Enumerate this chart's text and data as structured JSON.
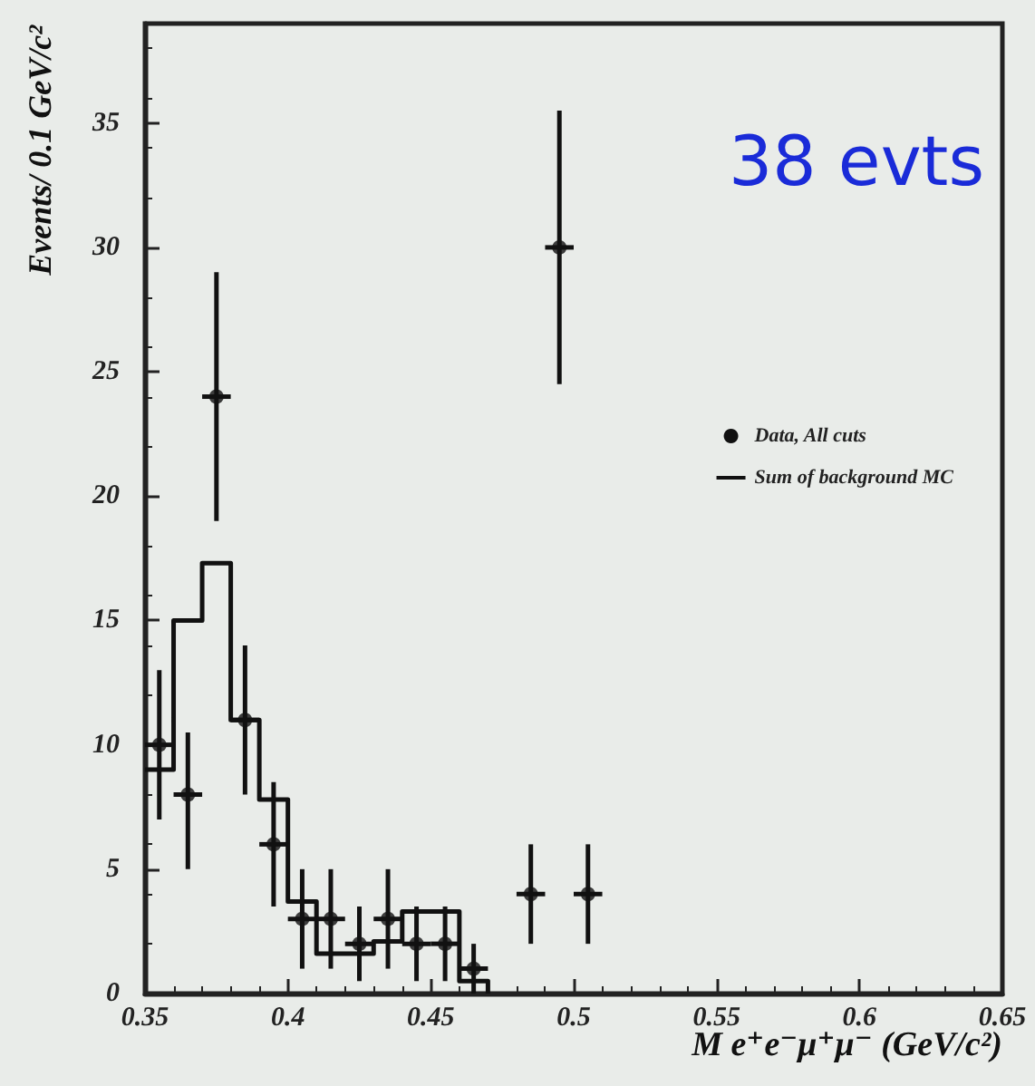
{
  "chart_data": {
    "type": "scatter",
    "xlabel": "M e⁺e⁻μ⁺μ⁻ (GeV/c²)",
    "ylabel": "Events/ 0.1 GeV/c²",
    "annotations": [
      "38 evts"
    ],
    "xlim": [
      0.35,
      0.65
    ],
    "xticks": [
      0.35,
      0.4,
      0.45,
      0.5,
      0.55,
      0.6,
      0.65
    ],
    "ylim": [
      0,
      39
    ],
    "yticks": [
      0,
      5,
      10,
      15,
      20,
      25,
      30,
      35
    ],
    "grid": false,
    "legend": "right",
    "series": [
      {
        "name": "Data, All cuts",
        "marker": "circle",
        "color": "#111111",
        "x": [
          0.355,
          0.365,
          0.375,
          0.385,
          0.395,
          0.405,
          0.415,
          0.425,
          0.435,
          0.445,
          0.455,
          0.465,
          0.485,
          0.495,
          0.505
        ],
        "values": [
          10,
          8,
          24,
          11,
          6,
          3,
          3,
          2,
          3,
          2,
          2,
          1,
          4,
          30,
          4
        ],
        "errors": [
          [
            7,
            13
          ],
          [
            5,
            10.5
          ],
          [
            19,
            29
          ],
          [
            8,
            14
          ],
          [
            3.5,
            8.5
          ],
          [
            1,
            5
          ],
          [
            1,
            5
          ],
          [
            0.5,
            3.5
          ],
          [
            1,
            5
          ],
          [
            0.5,
            3.5
          ],
          [
            0.5,
            3.5
          ],
          [
            0,
            2
          ],
          [
            2,
            6
          ],
          [
            24.5,
            35.5
          ],
          [
            2,
            6
          ]
        ],
        "xerrors": [
          0.005,
          0.005,
          0.005,
          0.005,
          0.005,
          0.005,
          0.005,
          0.005,
          0.005,
          0.005,
          0.005,
          0.005,
          0.005,
          0.005,
          0.005
        ]
      },
      {
        "name": "Sum of background MC",
        "type": "step",
        "marker": "none",
        "color": "#111111",
        "line_style": "solid",
        "x": [
          0.35,
          0.36,
          0.37,
          0.38,
          0.39,
          0.4,
          0.41,
          0.42,
          0.43,
          0.44,
          0.45,
          0.46,
          0.47
        ],
        "values": [
          9,
          15,
          17.3,
          11,
          7.8,
          3.7,
          1.6,
          1.6,
          2.1,
          3.3,
          3.3,
          0.5,
          0
        ]
      }
    ]
  }
}
